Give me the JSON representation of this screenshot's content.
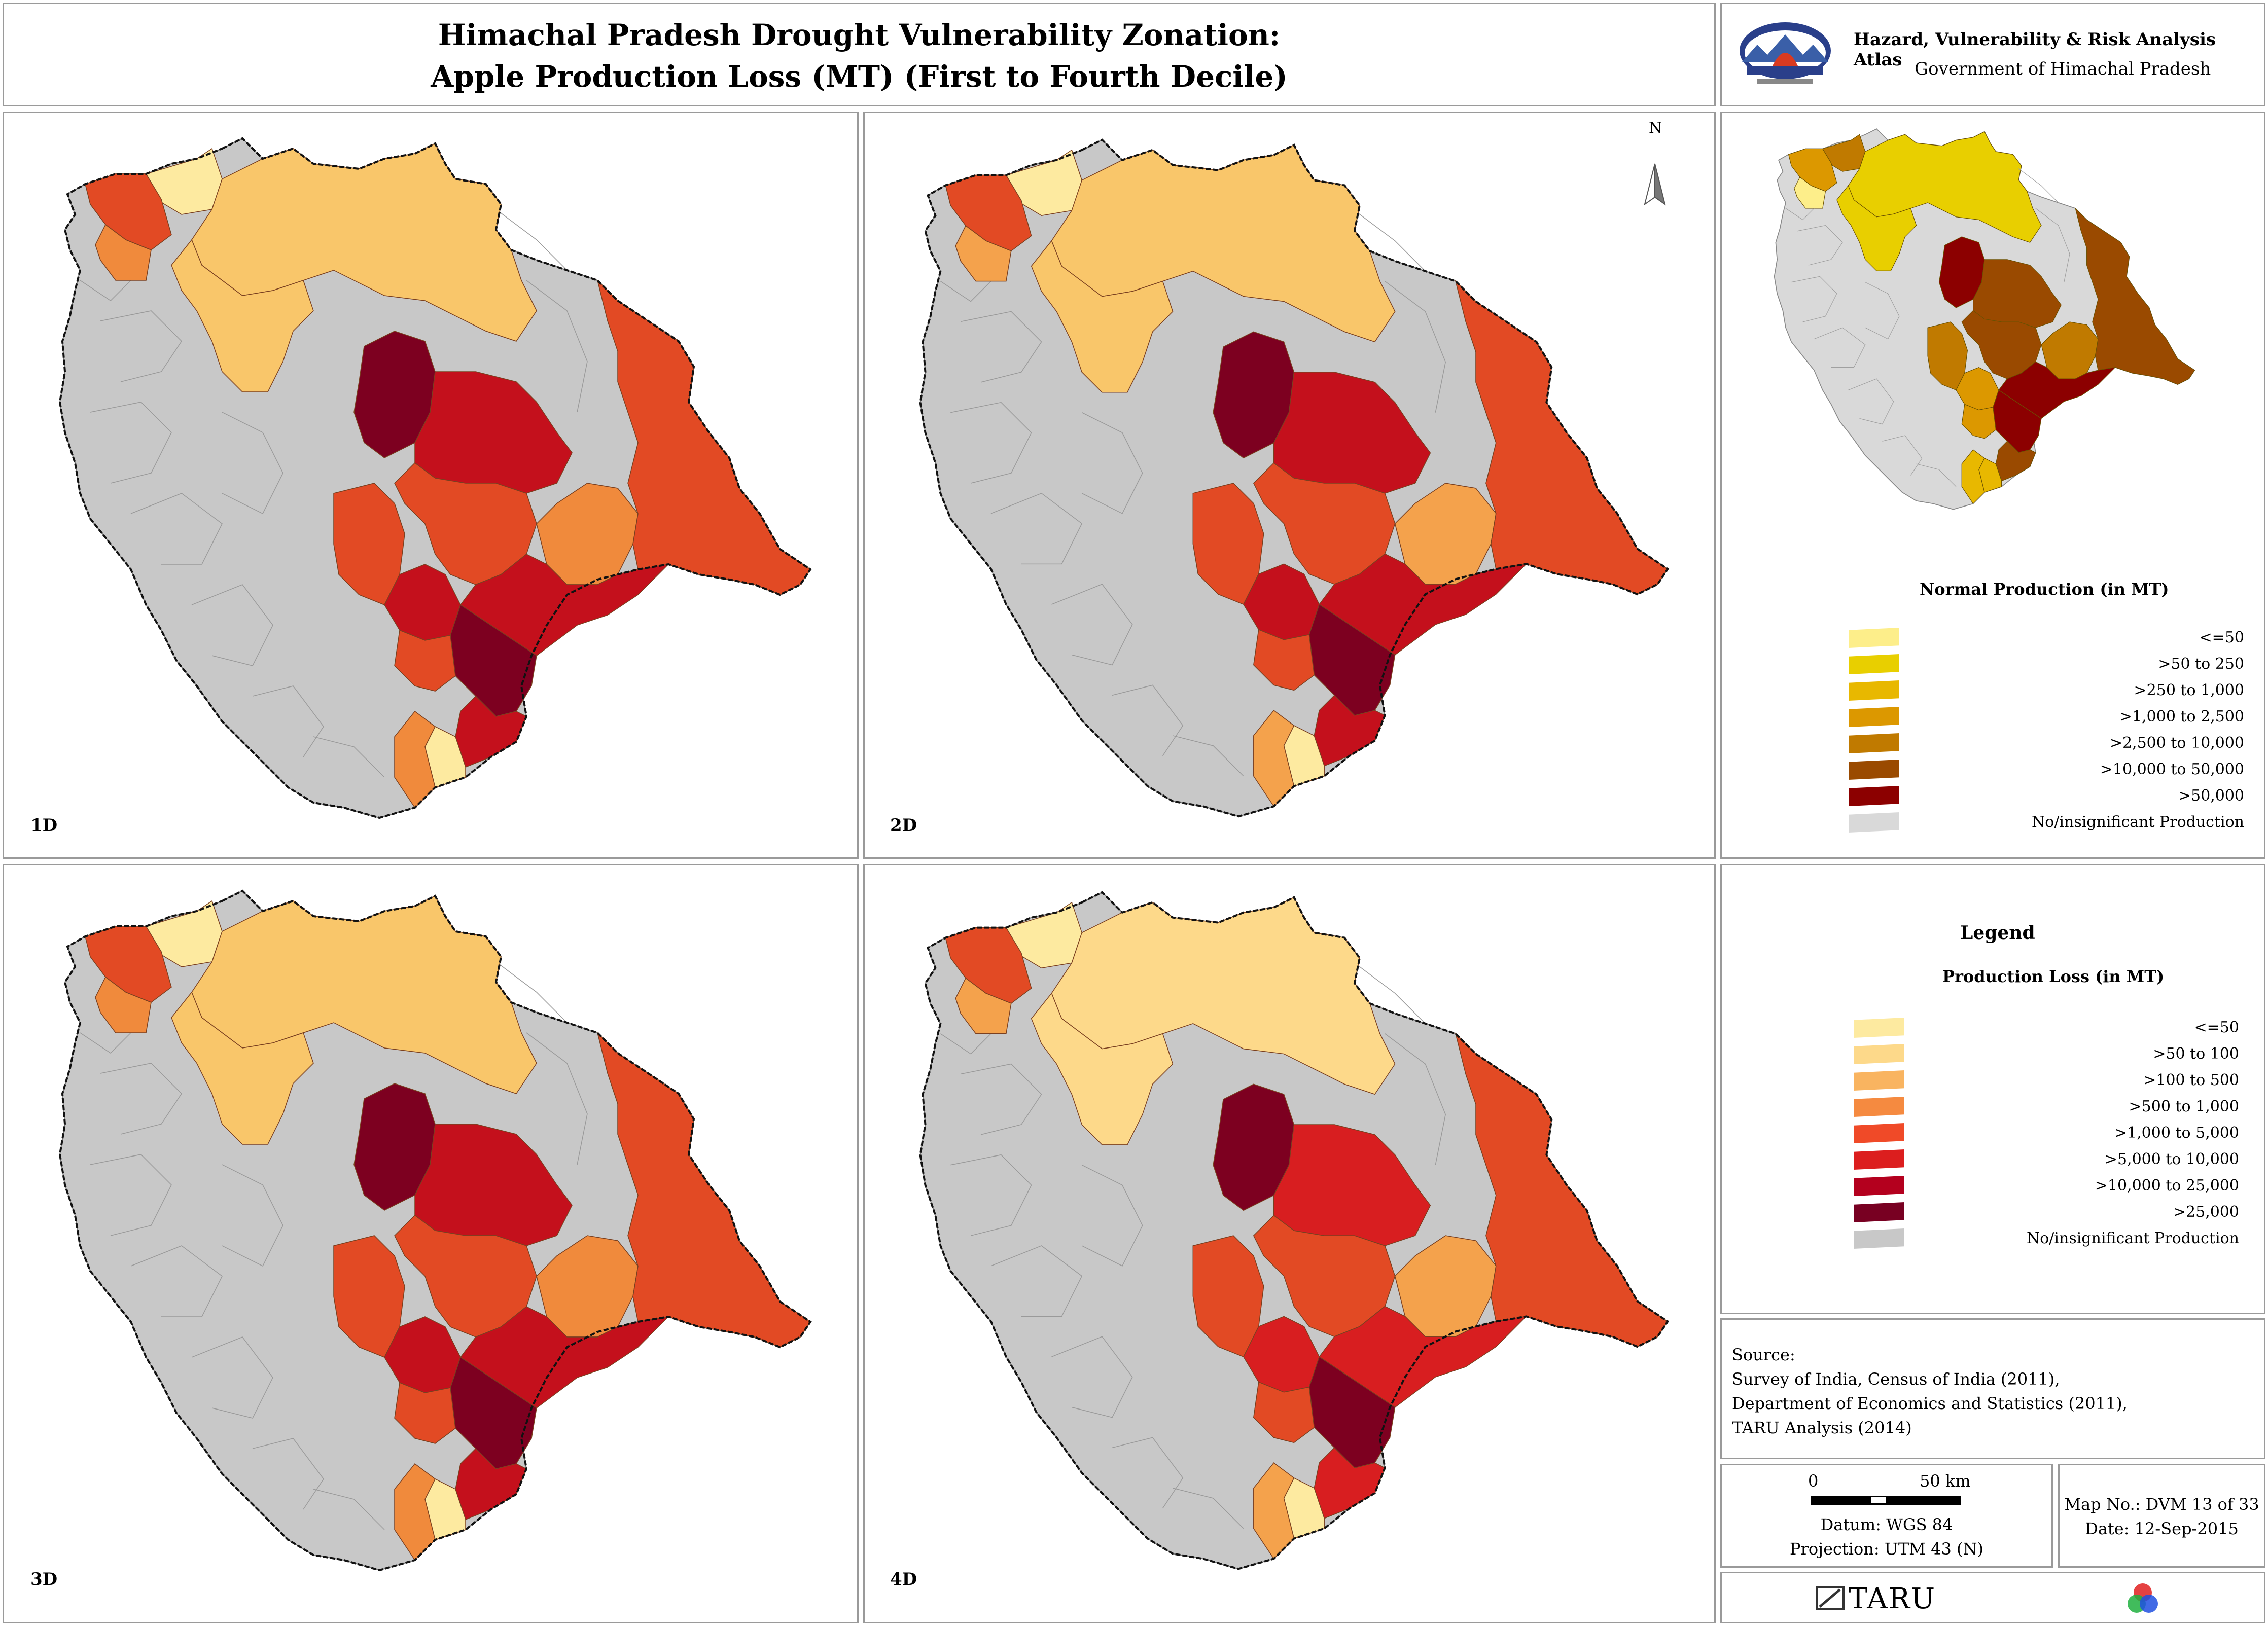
{
  "header": {
    "title_line1": "Himachal Pradesh Drought Vulnerability Zonation:",
    "title_line2": "Apple Production Loss (MT) (First to Fourth Decile)"
  },
  "atlas": {
    "name": "Hazard, Vulnerability & Risk Analysis Atlas",
    "government": "Government of Himachal Pradesh",
    "emblem_icon": "hp-government-emblem-icon"
  },
  "maps": [
    {
      "label": "1D",
      "colors": [
        "#fdeaa0",
        "#f9c66a",
        "#f08a3c",
        "#e24a24",
        "#c4101c",
        "#7d0020"
      ]
    },
    {
      "label": "2D",
      "colors": [
        "#fdeaa0",
        "#f9c66a",
        "#f4a24c",
        "#e24a24",
        "#c4101c",
        "#7d0020"
      ]
    },
    {
      "label": "3D",
      "colors": [
        "#fdeaa0",
        "#f9c66a",
        "#f08a3c",
        "#e24a24",
        "#c4101c",
        "#7d0020"
      ]
    },
    {
      "label": "4D",
      "colors": [
        "#fdeaa0",
        "#fdd98a",
        "#f4a24c",
        "#e24a24",
        "#d81e20",
        "#7d0020"
      ]
    }
  ],
  "north_arrow": {
    "label": "N",
    "icon": "north-arrow-icon"
  },
  "normal_production": {
    "title": "Normal Production (in MT)",
    "items": [
      {
        "label": "<=50",
        "color": "#fdee8a"
      },
      {
        "label": ">50 to 250",
        "color": "#e8cf00"
      },
      {
        "label": ">250 to 1,000",
        "color": "#e8b800"
      },
      {
        "label": ">1,000 to 2,500",
        "color": "#dc9800"
      },
      {
        "label": ">2,500 to 10,000",
        "color": "#c07a00"
      },
      {
        "label": ">10,000 to 50,000",
        "color": "#9a4a00"
      },
      {
        "label": ">50,000",
        "color": "#8c0000"
      },
      {
        "label": "No/insignificant Production",
        "color": "#d9d9d9"
      }
    ]
  },
  "legend": {
    "heading": "Legend",
    "title": "Production Loss (in MT)",
    "items": [
      {
        "label": "<=50",
        "color": "#fdeaa0"
      },
      {
        "label": ">50 to 100",
        "color": "#fdd98a"
      },
      {
        "label": ">100 to 500",
        "color": "#f9b460"
      },
      {
        "label": ">500 to 1,000",
        "color": "#f58a40"
      },
      {
        "label": ">1,000 to 5,000",
        "color": "#f04a28"
      },
      {
        "label": ">5,000 to 10,000",
        "color": "#dc1e1e"
      },
      {
        "label": ">10,000 to 25,000",
        "color": "#b4001e"
      },
      {
        "label": ">25,000",
        "color": "#780022"
      },
      {
        "label": "No/insignificant Production",
        "color": "#c8c8c8"
      }
    ]
  },
  "source": {
    "heading": "Source:",
    "lines": [
      "Survey of India, Census of India (2011),",
      "Department of Economics and Statistics (2011),",
      "TARU Analysis (2014)"
    ]
  },
  "scale": {
    "zero": "0",
    "distance": "50 km",
    "datum": "Datum: WGS 84",
    "projection": "Projection: UTM 43 (N)"
  },
  "map_info": {
    "map_no": "Map No.: DVM 13 of 33",
    "date": "Date: 12-Sep-2015"
  },
  "footer": {
    "brand": "TARU",
    "logo_icon": "taru-logo-icon",
    "partner_icon": "rgb-circles-logo-icon"
  }
}
